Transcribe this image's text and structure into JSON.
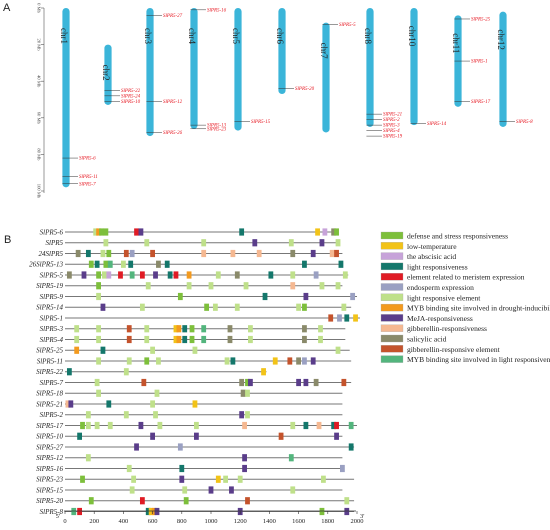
{
  "panels": {
    "a": "A",
    "b": "B"
  },
  "panel_a": {
    "axis_ticks": [
      {
        "value": 0,
        "label": "0 Mb"
      },
      {
        "value": 20,
        "label": "20 Mb"
      },
      {
        "value": 40,
        "label": "40 Mb"
      },
      {
        "value": 60,
        "label": "60 Mb"
      },
      {
        "value": 80,
        "label": "80 Mb"
      },
      {
        "value": 100,
        "label": "100 Mb"
      }
    ],
    "chromosomes": [
      {
        "name": "chr1",
        "start": 0,
        "end": 98,
        "genes": [
          {
            "label": "SlPR5-6",
            "pos": 82
          },
          {
            "label": "SlPR5-11",
            "pos": 92
          },
          {
            "label": "SlPR5-7",
            "pos": 96
          }
        ]
      },
      {
        "name": "chr2",
        "start": 20,
        "end": 53,
        "genes": [
          {
            "label": "SlPR5-22",
            "pos": 45
          },
          {
            "label": "SlPR5-24",
            "pos": 48
          },
          {
            "label": "SlPR5-10",
            "pos": 51
          }
        ]
      },
      {
        "name": "chr3",
        "start": 0,
        "end": 70,
        "genes": [
          {
            "label": "SlPR5-27",
            "pos": 4
          },
          {
            "label": "SlPR5-12",
            "pos": 51
          },
          {
            "label": "SlPR5-26",
            "pos": 68
          }
        ]
      },
      {
        "name": "chr4",
        "start": 0,
        "end": 66,
        "genes": [
          {
            "label": "SlPR5-16",
            "pos": 1
          },
          {
            "label": "SlPR5-13",
            "pos": 64
          },
          {
            "label": "SlPR5-23",
            "pos": 66
          }
        ]
      },
      {
        "name": "chr5",
        "start": 0,
        "end": 67,
        "genes": [
          {
            "label": "SlPR5-15",
            "pos": 62
          }
        ]
      },
      {
        "name": "chr6",
        "start": 0,
        "end": 47,
        "genes": [
          {
            "label": "SlPR5-20",
            "pos": 44
          }
        ]
      },
      {
        "name": "chr7",
        "start": 8,
        "end": 68,
        "genes": [
          {
            "label": "SlPR5-5",
            "pos": 9
          }
        ]
      },
      {
        "name": "chr8",
        "start": 0,
        "end": 65,
        "genes": [
          {
            "label": "SlPR5-21",
            "pos": 58
          },
          {
            "label": "SlPR5-2",
            "pos": 61
          },
          {
            "label": "SlPR5-3",
            "pos": 64
          },
          {
            "label": "SlPR5-4",
            "pos": 67
          },
          {
            "label": "SlPR5-19",
            "pos": 70
          }
        ]
      },
      {
        "name": "chr10",
        "start": 0,
        "end": 64,
        "genes": [
          {
            "label": "SlPR5-14",
            "pos": 63
          }
        ]
      },
      {
        "name": "chr11",
        "start": 4,
        "end": 54,
        "genes": [
          {
            "label": "SlPR5-25",
            "pos": 6
          },
          {
            "label": "SlPR5-1",
            "pos": 29
          },
          {
            "label": "SlPR5-17",
            "pos": 51
          }
        ]
      },
      {
        "name": "chr12",
        "start": 2,
        "end": 65,
        "genes": [
          {
            "label": "SlPR5-8",
            "pos": 62
          }
        ]
      }
    ]
  },
  "panel_b": {
    "axis": {
      "min": 0,
      "max": 2000,
      "ticks": [
        0,
        200,
        400,
        600,
        800,
        1000,
        1200,
        1400,
        1600,
        1800,
        2000
      ],
      "start_label": "5'",
      "end_label": "3'"
    },
    "legend": [
      {
        "label": "defense and stress responsiveness",
        "color": "#7dbf3b"
      },
      {
        "label": "low-temperature",
        "color": "#f2c318"
      },
      {
        "label": "the abscisic acid",
        "color": "#c7a3d9"
      },
      {
        "label": "light responsiveness",
        "color": "#14776b"
      },
      {
        "label": "element related to meristem expression",
        "color": "#e01b24"
      },
      {
        "label": "endosperm expression",
        "color": "#9aa0c2"
      },
      {
        "label": "light responsive element",
        "color": "#bfe08a"
      },
      {
        "label": "MYB binding site involved in drought-inducibility",
        "color": "#f39a1e"
      },
      {
        "label": "MeJA-responsiveness",
        "color": "#5a3d8a"
      },
      {
        "label": "gibberellin-responsiveness",
        "color": "#f5b891"
      },
      {
        "label": "salicylic acid",
        "color": "#8a8a6a"
      },
      {
        "label": "gibberellin-responsive element",
        "color": "#c4532c"
      },
      {
        "label": "MYB binding site involved in light responsiveness",
        "color": "#53b57d"
      }
    ],
    "genes": [
      {
        "name": "SlPR5-6",
        "length": 1870,
        "elements": [
          [
            210,
            6
          ],
          [
            230,
            7
          ],
          [
            250,
            0
          ],
          [
            280,
            0
          ],
          [
            490,
            4
          ],
          [
            520,
            8
          ],
          [
            1210,
            3
          ],
          [
            1730,
            1
          ],
          [
            1780,
            2
          ],
          [
            1840,
            10
          ],
          [
            1860,
            0
          ]
        ]
      },
      {
        "name": "SlPR5",
        "length": 1880,
        "elements": [
          [
            280,
            6
          ],
          [
            560,
            6
          ],
          [
            950,
            6
          ],
          [
            1300,
            8
          ],
          [
            1550,
            6
          ],
          [
            1760,
            8
          ],
          [
            1870,
            6
          ]
        ]
      },
      {
        "name": "24SlPR5",
        "length": 1900,
        "elements": [
          [
            90,
            10
          ],
          [
            160,
            3
          ],
          [
            260,
            6
          ],
          [
            300,
            0
          ],
          [
            420,
            11
          ],
          [
            460,
            5
          ],
          [
            600,
            11
          ],
          [
            950,
            9
          ],
          [
            1150,
            9
          ],
          [
            1330,
            9
          ],
          [
            1560,
            10
          ],
          [
            1700,
            8
          ],
          [
            1830,
            9
          ],
          [
            1860,
            11
          ]
        ]
      },
      {
        "name": "26SlPR5-13",
        "length": 1900,
        "elements": [
          [
            180,
            0
          ],
          [
            220,
            3
          ],
          [
            280,
            0
          ],
          [
            310,
            12
          ],
          [
            400,
            6
          ],
          [
            450,
            3
          ],
          [
            640,
            10
          ],
          [
            700,
            3
          ],
          [
            1640,
            3
          ],
          [
            1890,
            3
          ]
        ]
      },
      {
        "name": "SlPR5-5",
        "length": 1940,
        "elements": [
          [
            30,
            10
          ],
          [
            130,
            8
          ],
          [
            230,
            0
          ],
          [
            270,
            6
          ],
          [
            300,
            2
          ],
          [
            380,
            4
          ],
          [
            460,
            12
          ],
          [
            530,
            4
          ],
          [
            620,
            8
          ],
          [
            720,
            3
          ],
          [
            760,
            4
          ],
          [
            850,
            7
          ],
          [
            1050,
            6
          ],
          [
            1180,
            10
          ],
          [
            1410,
            3
          ],
          [
            1560,
            6
          ],
          [
            1720,
            5
          ],
          [
            1920,
            6
          ]
        ]
      },
      {
        "name": "SlPR5-19",
        "length": 1900,
        "elements": [
          [
            230,
            0
          ],
          [
            570,
            6
          ],
          [
            850,
            6
          ],
          [
            1000,
            6
          ],
          [
            1240,
            6
          ],
          [
            1560,
            9
          ],
          [
            1760,
            6
          ],
          [
            1870,
            6
          ]
        ]
      },
      {
        "name": "SlPR5-9",
        "length": 2000,
        "elements": [
          [
            230,
            6
          ],
          [
            790,
            0
          ],
          [
            1370,
            3
          ],
          [
            1650,
            8
          ],
          [
            1970,
            5
          ]
        ]
      },
      {
        "name": "SlPR5-14",
        "length": 1960,
        "elements": [
          [
            260,
            8
          ],
          [
            530,
            6
          ],
          [
            970,
            0
          ],
          [
            1030,
            6
          ],
          [
            1180,
            6
          ],
          [
            1600,
            6
          ],
          [
            1640,
            0
          ],
          [
            1910,
            6
          ]
        ]
      },
      {
        "name": "SlPR5-1",
        "length": 2020,
        "elements": [
          [
            1820,
            11
          ],
          [
            1880,
            5
          ],
          [
            1930,
            3
          ],
          [
            1990,
            1
          ]
        ]
      },
      {
        "name": "SlPR5-3",
        "length": 1920,
        "elements": [
          [
            80,
            6
          ],
          [
            230,
            6
          ],
          [
            440,
            11
          ],
          [
            560,
            6
          ],
          [
            760,
            1
          ],
          [
            780,
            7
          ],
          [
            820,
            3
          ],
          [
            870,
            0
          ],
          [
            950,
            12
          ],
          [
            1130,
            10
          ],
          [
            1270,
            6
          ],
          [
            1640,
            10
          ],
          [
            1750,
            6
          ]
        ]
      },
      {
        "name": "SlPR5-4",
        "length": 1920,
        "elements": [
          [
            80,
            6
          ],
          [
            230,
            6
          ],
          [
            440,
            11
          ],
          [
            560,
            6
          ],
          [
            760,
            1
          ],
          [
            780,
            7
          ],
          [
            820,
            3
          ],
          [
            870,
            0
          ],
          [
            950,
            12
          ],
          [
            1130,
            10
          ],
          [
            1270,
            6
          ],
          [
            1640,
            10
          ],
          [
            1750,
            6
          ]
        ]
      },
      {
        "name": "SlPR5-25",
        "length": 1950,
        "elements": [
          [
            80,
            7
          ],
          [
            260,
            3
          ],
          [
            600,
            6
          ],
          [
            890,
            6
          ],
          [
            1870,
            6
          ]
        ]
      },
      {
        "name": "SlPR5-11",
        "length": 1960,
        "elements": [
          [
            230,
            6
          ],
          [
            440,
            6
          ],
          [
            560,
            0
          ],
          [
            640,
            6
          ],
          [
            1110,
            6
          ],
          [
            1150,
            3
          ],
          [
            1440,
            1
          ],
          [
            1540,
            11
          ],
          [
            1600,
            10
          ],
          [
            1640,
            5
          ],
          [
            1700,
            8
          ]
        ]
      },
      {
        "name": "SlPR5-22",
        "length": 1380,
        "elements": [
          [
            30,
            3
          ],
          [
            420,
            6
          ],
          [
            1360,
            1
          ]
        ]
      },
      {
        "name": "SlPR5-7",
        "length": 1960,
        "elements": [
          [
            220,
            6
          ],
          [
            540,
            11
          ],
          [
            1210,
            10
          ],
          [
            1250,
            0
          ],
          [
            1270,
            8
          ],
          [
            1600,
            8
          ],
          [
            1650,
            8
          ],
          [
            1720,
            10
          ],
          [
            1910,
            11
          ]
        ]
      },
      {
        "name": "SlPR5-18",
        "length": 1900,
        "elements": [
          [
            230,
            6
          ],
          [
            630,
            6
          ],
          [
            1220,
            10
          ],
          [
            1250,
            6
          ]
        ]
      },
      {
        "name": "SlPR5-21",
        "length": 1900,
        "elements": [
          [
            20,
            9
          ],
          [
            40,
            8
          ],
          [
            300,
            3
          ],
          [
            600,
            6
          ],
          [
            890,
            1
          ]
        ]
      },
      {
        "name": "SlPR5-2",
        "length": 1900,
        "elements": [
          [
            160,
            6
          ],
          [
            420,
            6
          ],
          [
            620,
            6
          ],
          [
            1210,
            8
          ],
          [
            1250,
            6
          ]
        ]
      },
      {
        "name": "SlPR5-17",
        "length": 2000,
        "elements": [
          [
            120,
            0
          ],
          [
            160,
            6
          ],
          [
            220,
            6
          ],
          [
            310,
            6
          ],
          [
            520,
            8
          ],
          [
            650,
            6
          ],
          [
            900,
            6
          ],
          [
            1230,
            9
          ],
          [
            1560,
            6
          ],
          [
            1650,
            3
          ],
          [
            1740,
            9
          ],
          [
            1840,
            3
          ],
          [
            1860,
            4
          ],
          [
            1960,
            12
          ]
        ]
      },
      {
        "name": "SlPR5-10",
        "length": 1900,
        "elements": [
          [
            100,
            3
          ],
          [
            600,
            8
          ],
          [
            900,
            8
          ],
          [
            1480,
            11
          ],
          [
            1860,
            8
          ]
        ]
      },
      {
        "name": "SlPR5-27",
        "length": 1980,
        "elements": [
          [
            490,
            8
          ],
          [
            790,
            5
          ],
          [
            1960,
            3
          ]
        ]
      },
      {
        "name": "SlPR5-12",
        "length": 1900,
        "elements": [
          [
            160,
            6
          ],
          [
            1230,
            8
          ],
          [
            1550,
            12
          ]
        ]
      },
      {
        "name": "SlPR5-16",
        "length": 1900,
        "elements": [
          [
            440,
            6
          ],
          [
            800,
            3
          ],
          [
            1230,
            8
          ],
          [
            1900,
            5
          ]
        ]
      },
      {
        "name": "SlPR5-23",
        "length": 1980,
        "elements": [
          [
            120,
            0
          ],
          [
            470,
            6
          ],
          [
            800,
            8
          ],
          [
            1050,
            1
          ],
          [
            1100,
            6
          ],
          [
            1200,
            6
          ],
          [
            1770,
            6
          ]
        ]
      },
      {
        "name": "SlPR5-15",
        "length": 1900,
        "elements": [
          [
            460,
            6
          ],
          [
            820,
            6
          ],
          [
            1000,
            8
          ],
          [
            1140,
            8
          ],
          [
            1560,
            6
          ]
        ]
      },
      {
        "name": "SlPR5-20",
        "length": 1980,
        "elements": [
          [
            180,
            0
          ],
          [
            530,
            4
          ],
          [
            830,
            0
          ],
          [
            1250,
            11
          ],
          [
            1930,
            6
          ]
        ]
      },
      {
        "name": "SlPR5-8",
        "length": 1980,
        "elements": [
          [
            60,
            12
          ],
          [
            100,
            4
          ],
          [
            570,
            3
          ],
          [
            590,
            1
          ],
          [
            610,
            7
          ],
          [
            630,
            8
          ],
          [
            1200,
            8
          ],
          [
            1760,
            0
          ],
          [
            1930,
            8
          ]
        ]
      }
    ]
  }
}
